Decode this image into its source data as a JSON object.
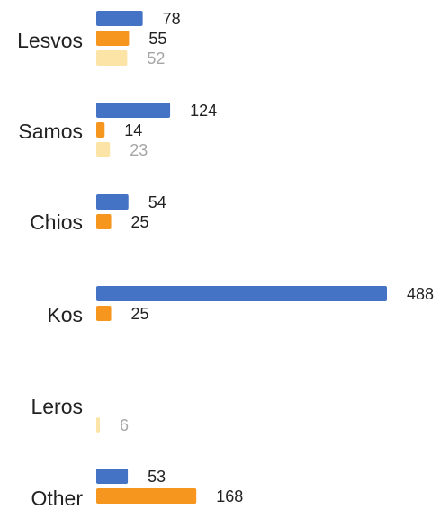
{
  "chart_data": {
    "type": "bar",
    "orientation": "horizontal",
    "categories": [
      "Lesvos",
      "Samos",
      "Chios",
      "Kos",
      "Leros",
      "Other"
    ],
    "series": [
      {
        "values": [
          78,
          124,
          54,
          488,
          null,
          53
        ],
        "color": "#4472C4",
        "label_color": "#222222"
      },
      {
        "values": [
          55,
          14,
          25,
          25,
          null,
          168
        ],
        "color": "#F7961E",
        "label_color": "#222222"
      },
      {
        "values": [
          52,
          23,
          null,
          null,
          6,
          null
        ],
        "color": "#FCE4A6",
        "label_color": "#A6A6A6"
      }
    ],
    "xlim": [
      0,
      488
    ],
    "grid": false,
    "legend": "none"
  }
}
